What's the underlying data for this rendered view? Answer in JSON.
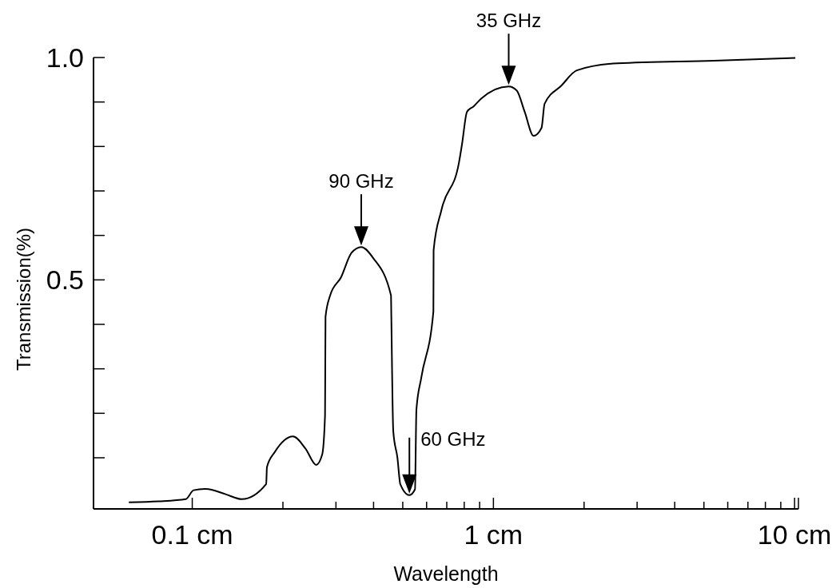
{
  "chart_data": {
    "type": "line",
    "xlabel": "Wavelength",
    "ylabel": "Transmission(%)",
    "log": "x",
    "grid": false,
    "xlim": [
      0.047,
      10.3
    ],
    "ylim": [
      -0.015,
      1.0
    ],
    "xticks": [
      {
        "value": 0.1,
        "label": "0.1 cm"
      },
      {
        "value": 0.2,
        "label": null
      },
      {
        "value": 0.3,
        "label": null
      },
      {
        "value": 0.4,
        "label": null
      },
      {
        "value": 0.5,
        "label": null
      },
      {
        "value": 0.6,
        "label": null
      },
      {
        "value": 0.7,
        "label": null
      },
      {
        "value": 0.8,
        "label": null
      },
      {
        "value": 0.9,
        "label": null
      },
      {
        "value": 1,
        "label": "1 cm"
      },
      {
        "value": 2,
        "label": null
      },
      {
        "value": 3,
        "label": null
      },
      {
        "value": 4,
        "label": null
      },
      {
        "value": 5,
        "label": null
      },
      {
        "value": 6,
        "label": null
      },
      {
        "value": 7,
        "label": null
      },
      {
        "value": 8,
        "label": null
      },
      {
        "value": 9,
        "label": null
      },
      {
        "value": 10,
        "label": "10 cm"
      }
    ],
    "yticks": [
      {
        "value": 0.1,
        "label": null
      },
      {
        "value": 0.2,
        "label": null
      },
      {
        "value": 0.3,
        "label": null
      },
      {
        "value": 0.4,
        "label": null
      },
      {
        "value": 0.5,
        "label": "0.5"
      },
      {
        "value": 0.6,
        "label": null
      },
      {
        "value": 0.7,
        "label": null
      },
      {
        "value": 0.8,
        "label": null
      },
      {
        "value": 0.9,
        "label": null
      },
      {
        "value": 1,
        "label": "1.0"
      }
    ],
    "series": [
      {
        "color": "#000000",
        "x": [
          0.0616,
          0.0773,
          0.0952,
          0.101,
          0.111,
          0.129,
          0.146,
          0.176,
          0.177,
          0.188,
          0.216,
          0.238,
          0.258,
          0.27,
          0.276,
          0.277,
          0.287,
          0.312,
          0.338,
          0.364,
          0.399,
          0.457,
          0.458,
          0.465,
          0.48,
          0.491,
          0.526,
          0.549,
          0.555,
          0.576,
          0.632,
          0.633,
          0.672,
          0.769,
          0.787,
          0.817,
          0.859,
          0.912,
          1.124,
          1.195,
          1.27,
          1.359,
          1.445,
          1.479,
          1.683,
          1.891,
          2.58,
          5.39,
          10.06
        ],
        "values": [
          0.0,
          0.002,
          0.007,
          0.027,
          0.03,
          0.018,
          0.007,
          0.041,
          0.079,
          0.113,
          0.148,
          0.12,
          0.084,
          0.107,
          0.196,
          0.417,
          0.465,
          0.506,
          0.561,
          0.574,
          0.549,
          0.465,
          0.424,
          0.16,
          0.1,
          0.04,
          0.016,
          0.029,
          0.208,
          0.28,
          0.429,
          0.567,
          0.657,
          0.765,
          0.806,
          0.878,
          0.89,
          0.908,
          0.935,
          0.926,
          0.878,
          0.824,
          0.842,
          0.896,
          0.937,
          0.971,
          0.987,
          0.993,
          0.999
        ]
      }
    ],
    "annotations": [
      {
        "text": "90 GHz",
        "x": 0.364,
        "y": 0.574
      },
      {
        "text": "60 GHz",
        "x": 0.526,
        "y": 0.016
      },
      {
        "text": "35 GHz",
        "x": 1.124,
        "y": 0.935
      }
    ]
  }
}
